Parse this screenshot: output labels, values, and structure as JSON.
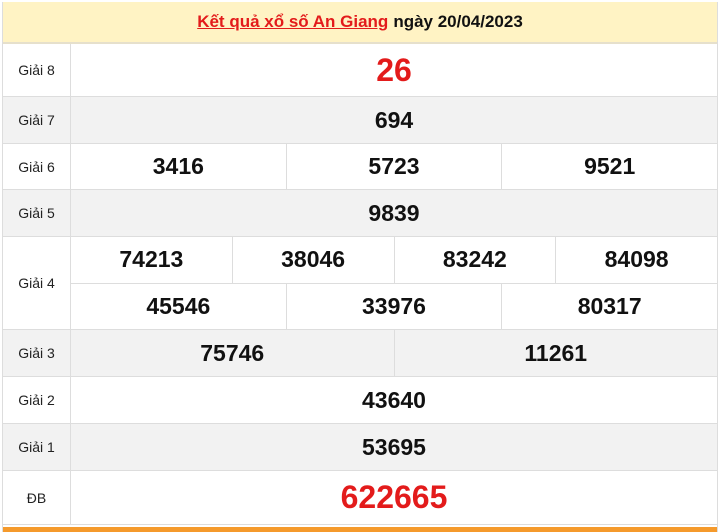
{
  "header": {
    "title_link": "Kết quả xổ số An Giang",
    "date_text": "ngày 20/04/2023"
  },
  "colors": {
    "header_bg": "#fff3c4",
    "highlight": "#e31b1b",
    "footer_bar": "#f59a2c"
  },
  "prizes": [
    {
      "label": "Giải 8",
      "lines": [
        [
          "26"
        ]
      ]
    },
    {
      "label": "Giải 7",
      "lines": [
        [
          "694"
        ]
      ]
    },
    {
      "label": "Giải 6",
      "lines": [
        [
          "3416",
          "5723",
          "9521"
        ]
      ]
    },
    {
      "label": "Giải 5",
      "lines": [
        [
          "9839"
        ]
      ]
    },
    {
      "label": "Giải 4",
      "lines": [
        [
          "74213",
          "38046",
          "83242",
          "84098"
        ],
        [
          "45546",
          "33976",
          "80317"
        ]
      ]
    },
    {
      "label": "Giải 3",
      "lines": [
        [
          "75746",
          "11261"
        ]
      ]
    },
    {
      "label": "Giải 2",
      "lines": [
        [
          "43640"
        ]
      ]
    },
    {
      "label": "Giải 1",
      "lines": [
        [
          "53695"
        ]
      ]
    },
    {
      "label": "ĐB",
      "lines": [
        [
          "622665"
        ]
      ]
    }
  ]
}
